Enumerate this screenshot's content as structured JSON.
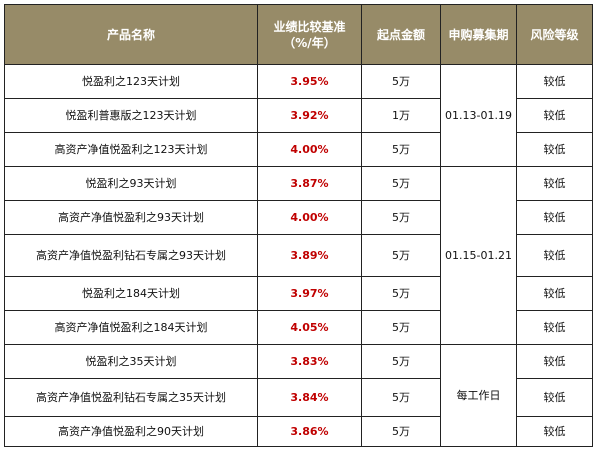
{
  "headers": {
    "name": "产品名称",
    "rate_line1": "业绩比较基准",
    "rate_line2": "（%/年）",
    "min": "起点金额",
    "period": "申购募集期",
    "risk": "风险等级"
  },
  "rows": [
    {
      "name": "悦盈利之123天计划",
      "rate": "3.95%",
      "min": "5万"
    },
    {
      "name": "悦盈利普惠版之123天计划",
      "rate": "3.92%",
      "min": "1万"
    },
    {
      "name": "高资产净值悦盈利之123天计划",
      "rate": "4.00%",
      "min": "5万"
    },
    {
      "name": "悦盈利之93天计划",
      "rate": "3.87%",
      "min": "5万"
    },
    {
      "name": "高资产净值悦盈利之93天计划",
      "rate": "4.00%",
      "min": "5万"
    },
    {
      "name": "高资产净值悦盈利钻石专属之93天计划",
      "rate": "3.89%",
      "min": "5万"
    },
    {
      "name": "悦盈利之184天计划",
      "rate": "3.97%",
      "min": "5万"
    },
    {
      "name": "高资产净值悦盈利之184天计划",
      "rate": "4.05%",
      "min": "5万"
    },
    {
      "name": "悦盈利之35天计划",
      "rate": "3.83%",
      "min": "5万"
    },
    {
      "name": "高资产净值悦盈利钻石专属之35天计划",
      "rate": "3.84%",
      "min": "5万"
    },
    {
      "name": "高资产净值悦盈利之90天计划",
      "rate": "3.86%",
      "min": "5万"
    }
  ],
  "periods": [
    "01.13-01.19",
    "01.15-01.21",
    "每工作日"
  ],
  "risk_levels": [
    "较低",
    "较低",
    "较低",
    "较低",
    "较低",
    "较低",
    "较低",
    "较低",
    "较低",
    "较低",
    "较低"
  ],
  "colors": {
    "header_bg": "#978b68",
    "header_text": "#ffffff",
    "rate_text": "#c00000",
    "border": "#222222"
  }
}
